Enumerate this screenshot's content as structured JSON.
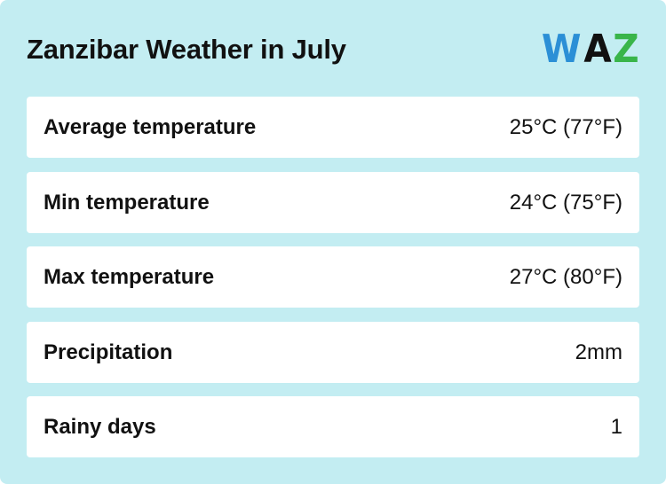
{
  "header": {
    "title": "Zanzibar Weather in July",
    "logo": {
      "letters": [
        {
          "char": "W",
          "color": "#2b8fd6"
        },
        {
          "char": "A",
          "color": "#111111"
        },
        {
          "char": "Z",
          "color": "#39b54a"
        }
      ]
    }
  },
  "rows": [
    {
      "label": "Average temperature",
      "value": "25°C (77°F)"
    },
    {
      "label": "Min temperature",
      "value": "24°C (75°F)"
    },
    {
      "label": "Max temperature",
      "value": "27°C (80°F)"
    },
    {
      "label": "Precipitation",
      "value": "2mm"
    },
    {
      "label": "Rainy days",
      "value": "1"
    }
  ],
  "colors": {
    "background": "#c3edf2",
    "row_background": "#ffffff",
    "text": "#111111"
  }
}
